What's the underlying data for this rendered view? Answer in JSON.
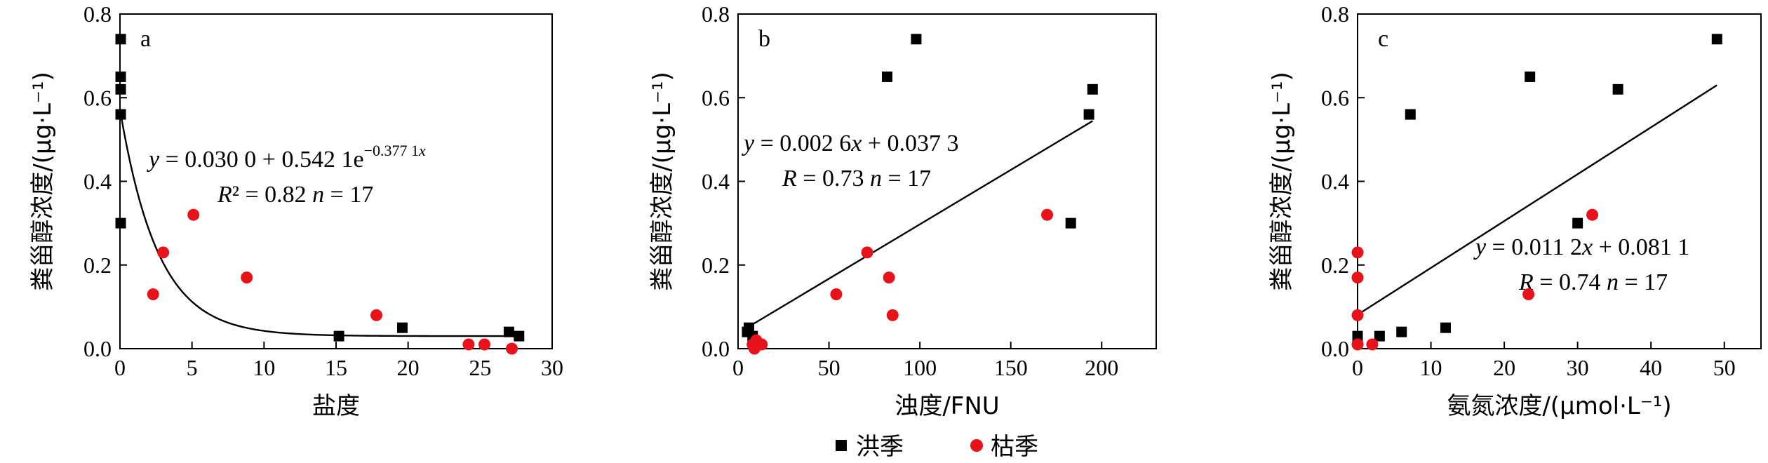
{
  "legend": {
    "flood": "洪季",
    "dry": "枯季",
    "flood_color": "#000000",
    "dry_color": "#e8121b"
  },
  "chart_data": [
    {
      "type": "scatter",
      "panel": "a",
      "xlabel": "盐度",
      "ylabel": "粪甾醇浓度/(μg·L⁻¹)",
      "xlim": [
        0,
        30
      ],
      "ylim": [
        0,
        0.8
      ],
      "xticks": [
        "0",
        "5",
        "10",
        "15",
        "20",
        "25",
        "30"
      ],
      "yticks": [
        "0.0",
        "0.2",
        "0.4",
        "0.6",
        "0.8"
      ],
      "fit": {
        "kind": "exp",
        "a": 0.03,
        "b": 0.5421,
        "c": -0.3771,
        "x": [
          0,
          27.5
        ]
      },
      "equation": {
        "line1": "y = 0.030 0 + 0.542 1e",
        "exponent": "−0.377 1x",
        "line2": "R² = 0.82   n = 17"
      },
      "series": [
        {
          "name": "洪季",
          "x": [
            0.05,
            0.05,
            0.05,
            0.05,
            0.05,
            15.2,
            19.6,
            27.0,
            27.7
          ],
          "y": [
            0.74,
            0.65,
            0.62,
            0.56,
            0.3,
            0.03,
            0.05,
            0.04,
            0.03
          ]
        },
        {
          "name": "枯季",
          "x": [
            2.3,
            3.0,
            5.1,
            8.8,
            17.8,
            24.2,
            25.3,
            27.2
          ],
          "y": [
            0.13,
            0.23,
            0.32,
            0.17,
            0.08,
            0.01,
            0.01,
            0.0
          ]
        }
      ]
    },
    {
      "type": "scatter",
      "panel": "b",
      "xlabel": "浊度/FNU",
      "ylabel": "粪甾醇浓度/(μg·L⁻¹)",
      "xlim": [
        0,
        230
      ],
      "ylim": [
        0,
        0.8
      ],
      "xticks": [
        "0",
        "50",
        "100",
        "150",
        "200"
      ],
      "yticks": [
        "0.0",
        "0.2",
        "0.4",
        "0.6",
        "0.8"
      ],
      "fit": {
        "kind": "linear",
        "slope": 0.0026,
        "intercept": 0.0373,
        "x": [
          5,
          195
        ]
      },
      "equation": {
        "line1": "y = 0.002 6x + 0.037 3",
        "line2": "R = 0.73   n = 17"
      },
      "series": [
        {
          "name": "洪季",
          "x": [
            5,
            6,
            8,
            82,
            98,
            183,
            193,
            195
          ],
          "y": [
            0.04,
            0.05,
            0.03,
            0.65,
            0.74,
            0.3,
            0.56,
            0.62
          ]
        },
        {
          "name": "枯季",
          "x": [
            8,
            9,
            10,
            13,
            54,
            71,
            83,
            85,
            170
          ],
          "y": [
            0.01,
            0.0,
            0.02,
            0.01,
            0.13,
            0.23,
            0.17,
            0.08,
            0.32
          ]
        }
      ]
    },
    {
      "type": "scatter",
      "panel": "c",
      "xlabel": "氨氮浓度/(μmol·L⁻¹)",
      "ylabel": "粪甾醇浓度/(μg·L⁻¹)",
      "xlim": [
        0,
        55
      ],
      "ylim": [
        0,
        0.8
      ],
      "xticks": [
        "0",
        "10",
        "20",
        "30",
        "40",
        "50"
      ],
      "yticks": [
        "0.0",
        "0.2",
        "0.4",
        "0.6",
        "0.8"
      ],
      "fit": {
        "kind": "linear",
        "slope": 0.0112,
        "intercept": 0.0811,
        "x": [
          0,
          49
        ]
      },
      "equation": {
        "line1": "y = 0.011 2x + 0.081 1",
        "line2": "R = 0.74   n = 17"
      },
      "series": [
        {
          "name": "洪季",
          "x": [
            0,
            0,
            3,
            6,
            7.2,
            12,
            23.5,
            30,
            35.5,
            49
          ],
          "y": [
            0.03,
            0.02,
            0.03,
            0.04,
            0.56,
            0.05,
            0.65,
            0.3,
            0.62,
            0.74
          ]
        },
        {
          "name": "枯季",
          "x": [
            0,
            0,
            0,
            0,
            2,
            23.3,
            32
          ],
          "y": [
            0.23,
            0.17,
            0.08,
            0.01,
            0.01,
            0.13,
            0.32
          ]
        }
      ]
    }
  ]
}
